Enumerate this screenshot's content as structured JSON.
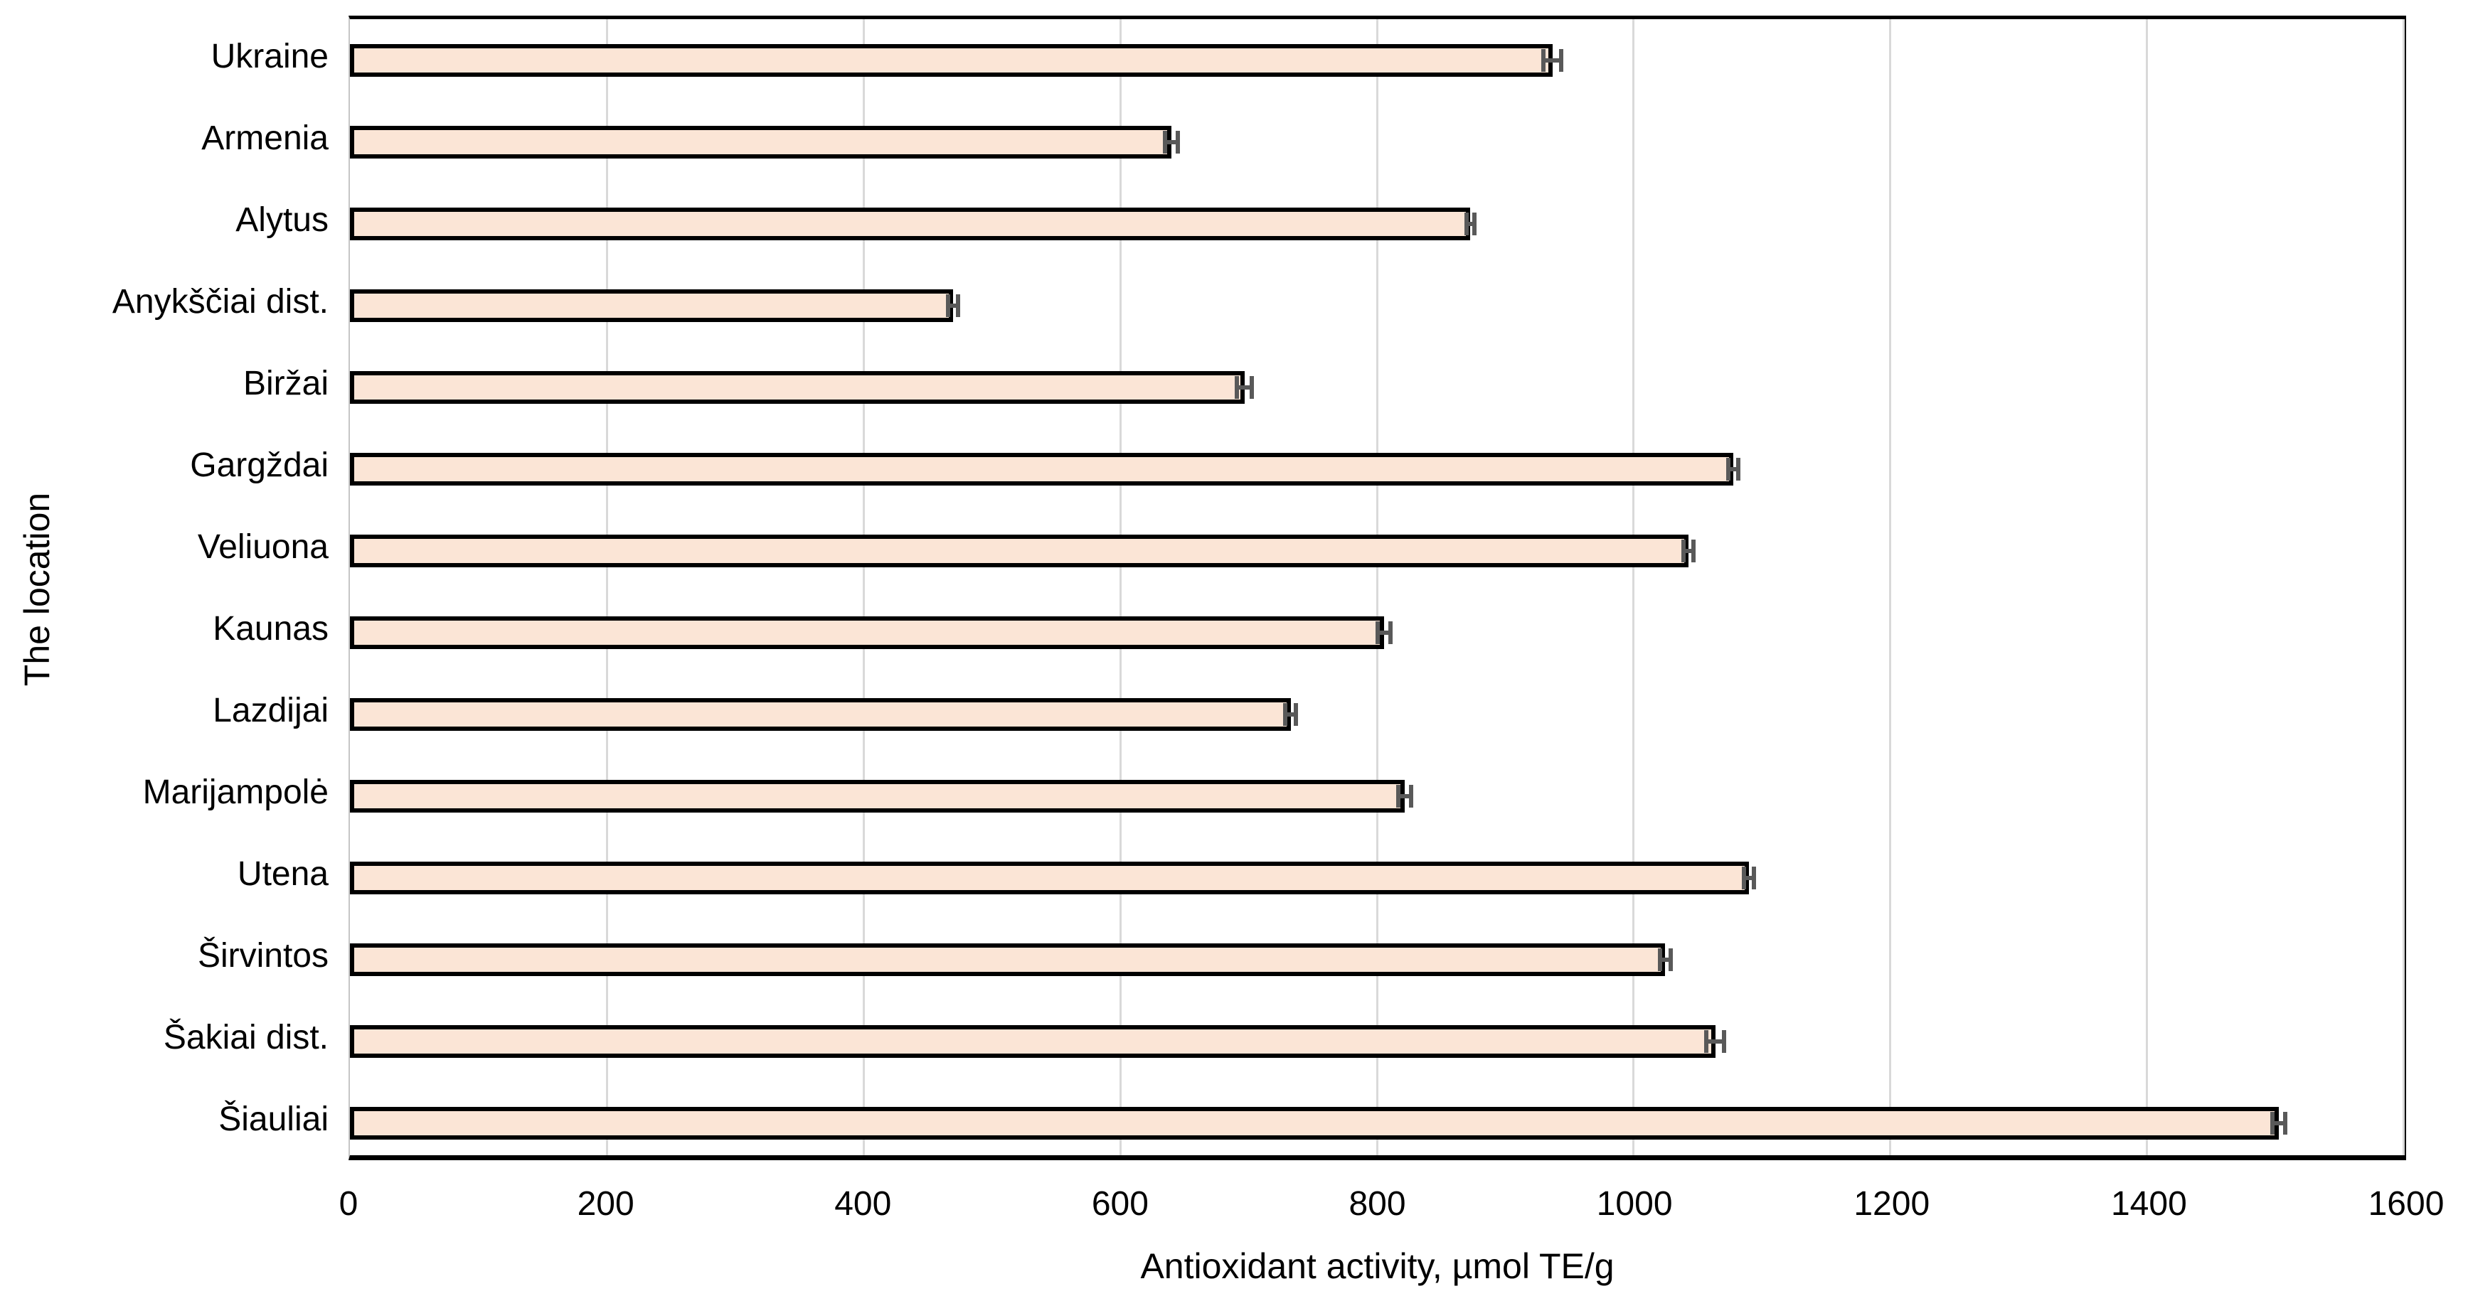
{
  "chart_data": {
    "type": "bar",
    "orientation": "horizontal",
    "title": "",
    "xlabel": "Antioxidant activity, µmol TE/g",
    "ylabel": "The location",
    "xlim": [
      0,
      1600
    ],
    "xticks": [
      0,
      200,
      400,
      600,
      800,
      1000,
      1200,
      1400,
      1600
    ],
    "grid": "vertical-on",
    "legend": "none",
    "categories": [
      "Ukraine",
      "Armenia",
      "Alytus",
      "Anykščiai dist.",
      "Biržai",
      "Gargždai",
      "Veliuona",
      "Kaunas",
      "Lazdijai",
      "Marijampolė",
      "Utena",
      "Širvintos",
      "Šakiai dist.",
      "Šiauliai"
    ],
    "values": [
      937,
      640,
      873,
      470,
      697,
      1078,
      1043,
      806,
      733,
      822,
      1090,
      1025,
      1064,
      1503
    ],
    "error_bars": [
      7,
      5,
      3,
      4,
      6,
      4,
      4,
      5,
      4,
      5,
      4,
      4,
      7,
      5
    ],
    "colors": {
      "bar_fill": "#FBE5D6",
      "bar_border": "#000000",
      "error_bar": "#595959",
      "gridline": "#D9D9D9",
      "axis_line": "#000000",
      "text": "#000000"
    }
  }
}
